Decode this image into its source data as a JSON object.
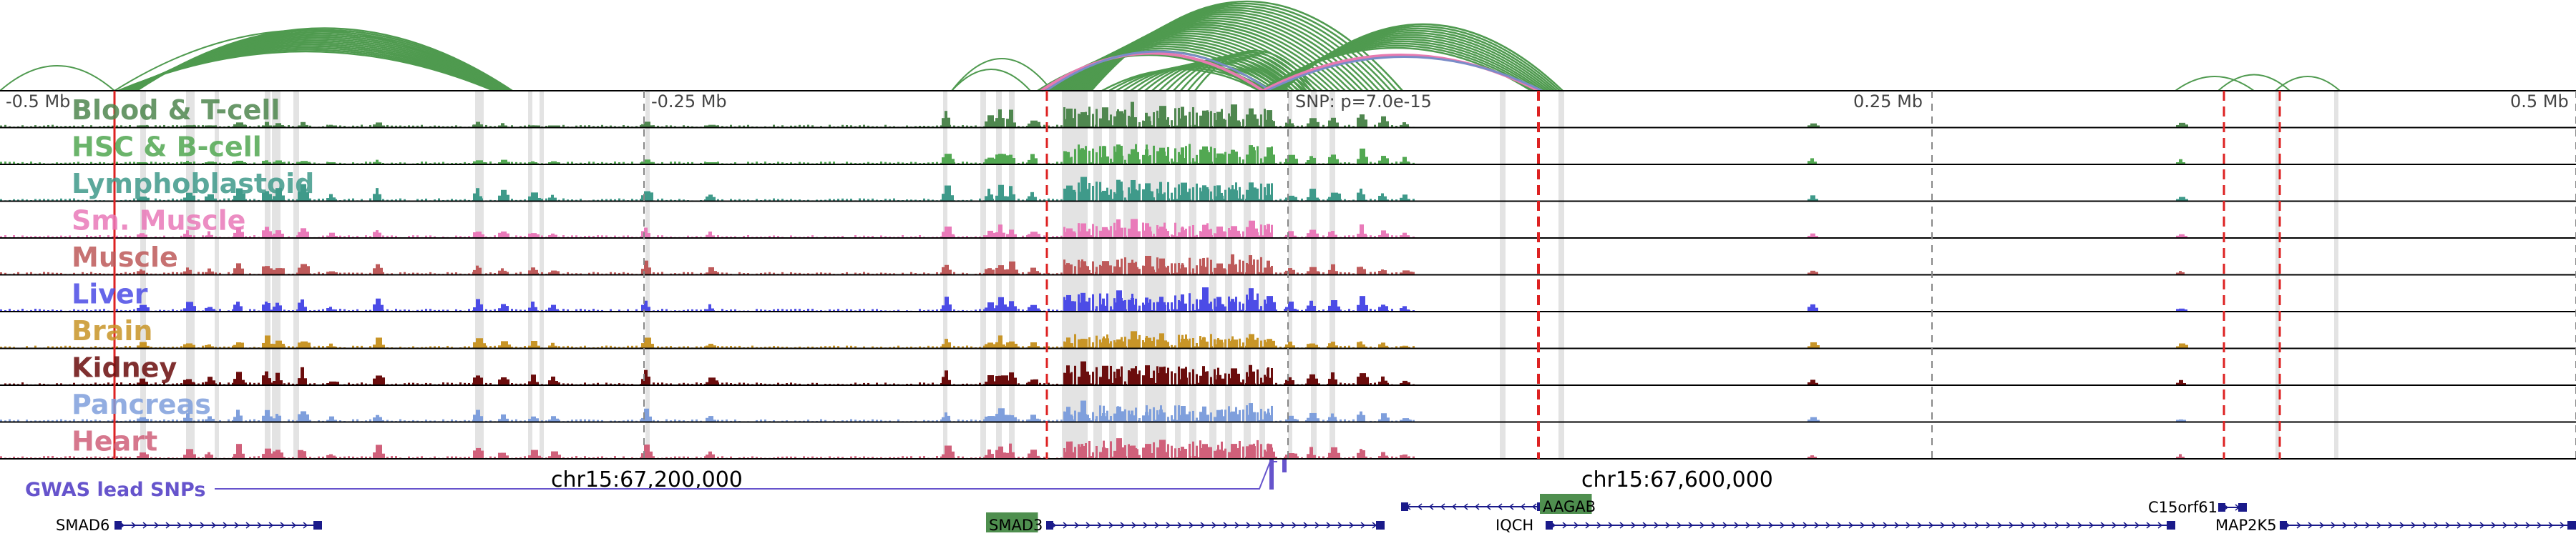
{
  "axis": {
    "ticks": [
      {
        "label": "-0.5 Mb",
        "pos": -0.5
      },
      {
        "label": "-0.25 Mb",
        "pos": -0.25
      },
      {
        "label": "0.25 Mb",
        "pos": 0.25
      },
      {
        "label": "0.5 Mb",
        "pos": 0.5
      }
    ],
    "snp_label": "SNP: p=7.0e-15",
    "positions": [
      "chr15:67,200,000",
      "chr15:67,600,000"
    ]
  },
  "tracks": [
    {
      "name": "Blood & T-cell",
      "color": "#4f874f",
      "scale": 1.0
    },
    {
      "name": "HSC & B-cell",
      "color": "#52a852",
      "scale": 0.95
    },
    {
      "name": "Lymphoblastoid",
      "color": "#3f9a8a",
      "scale": 0.9
    },
    {
      "name": "Sm. Muscle",
      "color": "#e97ab9",
      "scale": 0.7
    },
    {
      "name": "Muscle",
      "color": "#be5a5a",
      "scale": 0.8
    },
    {
      "name": "Liver",
      "color": "#4c4ce6",
      "scale": 0.85
    },
    {
      "name": "Brain",
      "color": "#c89527",
      "scale": 0.65
    },
    {
      "name": "Kidney",
      "color": "#6b0d0d",
      "scale": 0.9
    },
    {
      "name": "Pancreas",
      "color": "#7f9fdc",
      "scale": 0.75
    },
    {
      "name": "Heart",
      "color": "#d0607a",
      "scale": 0.85
    }
  ],
  "gwas": {
    "label": "GWAS lead SNPs",
    "color": "#6654cc"
  },
  "genes": [
    {
      "name": "SMAD6",
      "strand": "+",
      "highlight": false
    },
    {
      "name": "SMAD3",
      "strand": "+",
      "highlight": true
    },
    {
      "name": "AAGAB",
      "strand": "-",
      "highlight": true
    },
    {
      "name": "IQCH",
      "strand": "+",
      "highlight": false
    },
    {
      "name": "C15orf61",
      "strand": "+",
      "highlight": false
    },
    {
      "name": "MAP2K5",
      "strand": "+",
      "highlight": false
    }
  ],
  "colors": {
    "arc": "#4f9a4f",
    "arc_highlight": "#e87ab0",
    "arc_blue": "#7a8cc8",
    "red_line": "#dd2222",
    "gray_line": "#888888",
    "gene": "#1a1a8a",
    "gene_highlight_bg": "#4f8f4f"
  }
}
